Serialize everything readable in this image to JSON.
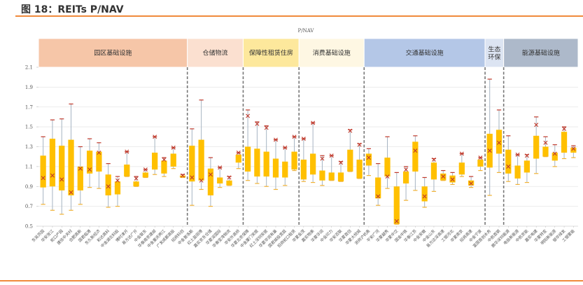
{
  "figure_title": "图 18：REITs P/NAV",
  "chart_data": {
    "type": "boxplot",
    "title": "P/NAV",
    "ylim": [
      0.5,
      2.1
    ],
    "yticks": [
      "2.1",
      "1.9",
      "1.7",
      "1.5",
      "1.3",
      "1.1",
      "0.9",
      "0.7",
      "0.5"
    ],
    "grid": true,
    "marker_meaning": "x marks current value",
    "colors": {
      "box": "#ffc000",
      "whisker": "#a6b4c2",
      "marker": "#c0392b",
      "cap_top": "#c0392b",
      "cap_bottom": "#f2b233"
    },
    "groups": [
      {
        "name": "园区基础设施",
        "color": "#f6c6a8",
        "count": 16
      },
      {
        "name": "仓储物流",
        "color": "#fbe0d0",
        "count": 6
      },
      {
        "name": "保障性租赁住房",
        "color": "#fde89c",
        "count": 6
      },
      {
        "name": "消费基础设施",
        "color": "#fef7e3",
        "count": 7
      },
      {
        "name": "交通基础设施",
        "color": "#b4c7e7",
        "count": 13
      },
      {
        "name": "生态环保",
        "color": "#dce4f2",
        "count": 2
      },
      {
        "name": "能源基础设施",
        "color": "#adb9ca",
        "count": 8
      }
    ],
    "series": [
      {
        "name": "东吴苏园",
        "min": 0.72,
        "q1": 0.89,
        "q3": 1.21,
        "max": 1.4,
        "current": 0.985
      },
      {
        "name": "华安张江",
        "min": 0.66,
        "q1": 0.9,
        "q3": 1.38,
        "max": 1.57,
        "current": 1.01
      },
      {
        "name": "蛇口产园",
        "min": 0.62,
        "q1": 0.86,
        "q3": 1.31,
        "max": 1.58,
        "current": 0.97
      },
      {
        "name": "建信中关村",
        "min": 0.66,
        "q1": 0.81,
        "q3": 1.37,
        "max": 1.73,
        "current": 0.84
      },
      {
        "name": "合肥高新",
        "min": 0.72,
        "q1": 0.86,
        "q3": 1.1,
        "max": 1.3,
        "current": 1.08
      },
      {
        "name": "国君临港",
        "min": 0.89,
        "q1": 1.03,
        "q3": 1.26,
        "max": 1.38,
        "current": 1.07
      },
      {
        "name": "东久新经济",
        "min": 0.88,
        "q1": 1.05,
        "q3": 1.25,
        "max": 1.34,
        "current": 1.24
      },
      {
        "name": "和达高科",
        "min": 0.69,
        "q1": 0.81,
        "q3": 1.02,
        "max": 1.13,
        "current": 0.9
      },
      {
        "name": "中金湖北科投",
        "min": 0.7,
        "q1": 0.82,
        "q3": 0.95,
        "max": 1.0,
        "current": 0.96
      },
      {
        "name": "博时津开",
        "min": 1.0,
        "q1": 1.0,
        "q3": 1.12,
        "max": 1.25,
        "current": 1.25
      },
      {
        "name": "易方达广开",
        "min": 0.9,
        "q1": 0.9,
        "q3": 0.95,
        "max": 1.0,
        "current": 0.98
      },
      {
        "name": "中金联东",
        "min": 0.99,
        "q1": 0.99,
        "q3": 1.04,
        "max": 1.07,
        "current": 1.07
      },
      {
        "name": "华泰南京建邺",
        "min": 1.02,
        "q1": 1.07,
        "q3": 1.24,
        "max": 1.4,
        "current": 1.4
      },
      {
        "name": "中金重庆两江",
        "min": 1.0,
        "q1": 1.03,
        "q3": 1.16,
        "max": 1.19,
        "current": 1.17
      },
      {
        "name": "广发成都高投",
        "min": 1.08,
        "q1": 1.1,
        "q3": 1.23,
        "max": 1.29,
        "current": 1.29
      },
      {
        "name": "招商科创",
        "min": 0.99,
        "q1": 0.99,
        "q3": 1.01,
        "max": 1.02,
        "current": 1.01
      },
      {
        "name": "中金普洛斯",
        "min": 0.71,
        "q1": 0.95,
        "q3": 1.31,
        "max": 1.48,
        "current": 0.99
      },
      {
        "name": "红土盐田港",
        "min": 0.87,
        "q1": 0.96,
        "q3": 1.37,
        "max": 1.77,
        "current": 0.96
      },
      {
        "name": "嘉实京东仓储",
        "min": 0.7,
        "q1": 0.81,
        "q3": 1.08,
        "max": 1.19,
        "current": 1.02
      },
      {
        "name": "华夏深国际",
        "min": 0.89,
        "q1": 0.93,
        "q3": 0.99,
        "max": 1.09,
        "current": 1.09
      },
      {
        "name": "华泰宝湾物流",
        "min": 0.91,
        "q1": 0.91,
        "q3": 0.96,
        "max": 1.0,
        "current": 0.99
      },
      {
        "name": "华安外高桥",
        "min": 1.08,
        "q1": 1.14,
        "q3": 1.22,
        "max": 1.24,
        "current": 1.24
      },
      {
        "name": "华夏北京保障",
        "min": 0.96,
        "q1": 1.05,
        "q3": 1.3,
        "max": 1.67,
        "current": 1.61
      },
      {
        "name": "中金厦门安居",
        "min": 0.93,
        "q1": 1.0,
        "q3": 1.28,
        "max": 1.55,
        "current": 1.53
      },
      {
        "name": "红土深圳安居",
        "min": 0.9,
        "q1": 1.0,
        "q3": 1.25,
        "max": 1.51,
        "current": 1.49
      },
      {
        "name": "华夏华润有巢",
        "min": 0.87,
        "q1": 0.99,
        "q3": 1.18,
        "max": 1.37,
        "current": 1.37
      },
      {
        "name": "国君城投宽庭",
        "min": 0.91,
        "q1": 0.99,
        "q3": 1.15,
        "max": 1.29,
        "current": 1.29
      },
      {
        "name": "招商蛇口租赁",
        "min": 1.06,
        "q1": 1.07,
        "q3": 1.25,
        "max": 1.4,
        "current": 1.4
      },
      {
        "name": "华夏金茂",
        "min": 0.95,
        "q1": 0.97,
        "q3": 1.17,
        "max": 1.38,
        "current": 1.38
      },
      {
        "name": "嘉实物美",
        "min": 0.94,
        "q1": 1.02,
        "q3": 1.23,
        "max": 1.54,
        "current": 1.54
      },
      {
        "name": "华夏华润",
        "min": 0.91,
        "q1": 0.96,
        "q3": 1.06,
        "max": 1.21,
        "current": 1.18
      },
      {
        "name": "中金印力",
        "min": 0.96,
        "q1": 0.96,
        "q3": 1.04,
        "max": 1.21,
        "current": 1.21
      },
      {
        "name": "华安百联",
        "min": 0.95,
        "q1": 0.95,
        "q3": 1.04,
        "max": 1.15,
        "current": 1.14
      },
      {
        "name": "华夏首创",
        "min": 1.05,
        "q1": 1.05,
        "q3": 1.27,
        "max": 1.47,
        "current": 1.46
      },
      {
        "name": "华夏大悦城",
        "min": 0.98,
        "q1": 0.98,
        "q3": 1.17,
        "max": 1.33,
        "current": 1.32
      },
      {
        "name": "浙商沪杭甬",
        "min": 1.01,
        "q1": 1.11,
        "q3": 1.23,
        "max": 1.28,
        "current": 1.19
      },
      {
        "name": "平安广河",
        "min": 0.71,
        "q1": 0.78,
        "q3": 0.99,
        "max": 1.13,
        "current": 0.8
      },
      {
        "name": "华夏越秀",
        "min": 0.88,
        "q1": 1.0,
        "q3": 1.19,
        "max": 1.4,
        "current": 1.0
      },
      {
        "name": "华夏中交",
        "min": 0.52,
        "q1": 0.52,
        "q3": 0.9,
        "max": 1.04,
        "current": 0.55
      },
      {
        "name": "国金中铁",
        "min": 0.76,
        "q1": 0.93,
        "q3": 1.05,
        "max": 1.1,
        "current": 1.07
      },
      {
        "name": "华泰江苏",
        "min": 0.86,
        "q1": 1.05,
        "q3": 1.35,
        "max": 1.41,
        "current": 1.26
      },
      {
        "name": "中金安徽",
        "min": 0.69,
        "q1": 0.75,
        "q3": 0.9,
        "max": 0.99,
        "current": 0.8
      },
      {
        "name": "中金山东",
        "min": 0.85,
        "q1": 0.97,
        "q3": 1.14,
        "max": 1.18,
        "current": 1.17
      },
      {
        "name": "易方达深高速",
        "min": 0.96,
        "q1": 0.96,
        "q3": 1.03,
        "max": 1.06,
        "current": 1.0
      },
      {
        "name": "工银河北",
        "min": 0.92,
        "q1": 0.94,
        "q3": 1.01,
        "max": 1.04,
        "current": 0.97
      },
      {
        "name": "华夏南京",
        "min": 1.0,
        "q1": 1.02,
        "q3": 1.14,
        "max": 1.23,
        "current": 1.23
      },
      {
        "name": "招商高速",
        "min": 0.89,
        "q1": 0.91,
        "q3": 0.96,
        "max": 1.0,
        "current": 0.93
      },
      {
        "name": "中金宁波",
        "min": 1.06,
        "q1": 1.1,
        "q3": 1.17,
        "max": 1.19,
        "current": 1.19
      },
      {
        "name": "富国首创水务",
        "min": 0.81,
        "q1": 1.09,
        "q3": 1.43,
        "max": 1.98,
        "current": 1.26
      },
      {
        "name": "中航首钢",
        "min": 1.04,
        "q1": 1.23,
        "q3": 1.47,
        "max": 1.67,
        "current": 1.34
      },
      {
        "name": "鹏华深圳能源",
        "min": 0.95,
        "q1": 1.03,
        "q3": 1.27,
        "max": 1.41,
        "current": 1.1
      },
      {
        "name": "电投新能源",
        "min": 0.92,
        "q1": 0.98,
        "q3": 1.11,
        "max": 1.22,
        "current": 1.22
      },
      {
        "name": "中航京能",
        "min": 0.94,
        "q1": 1.04,
        "q3": 1.16,
        "max": 1.22,
        "current": 1.21
      },
      {
        "name": "嘉实电建",
        "min": 1.03,
        "q1": 1.18,
        "q3": 1.41,
        "max": 1.6,
        "current": 1.52
      },
      {
        "name": "华夏特变",
        "min": 1.2,
        "q1": 1.2,
        "q3": 1.3,
        "max": 1.4,
        "current": 1.34
      },
      {
        "name": "明阳新能源",
        "min": 1.1,
        "q1": 1.16,
        "q3": 1.24,
        "max": 1.32,
        "current": 1.23
      },
      {
        "name": "银华绿发",
        "min": 1.18,
        "q1": 1.24,
        "q3": 1.45,
        "max": 1.5,
        "current": 1.48
      },
      {
        "name": "工银蒙能",
        "min": 1.19,
        "q1": 1.24,
        "q3": 1.29,
        "max": 1.31,
        "current": 1.28
      }
    ]
  }
}
